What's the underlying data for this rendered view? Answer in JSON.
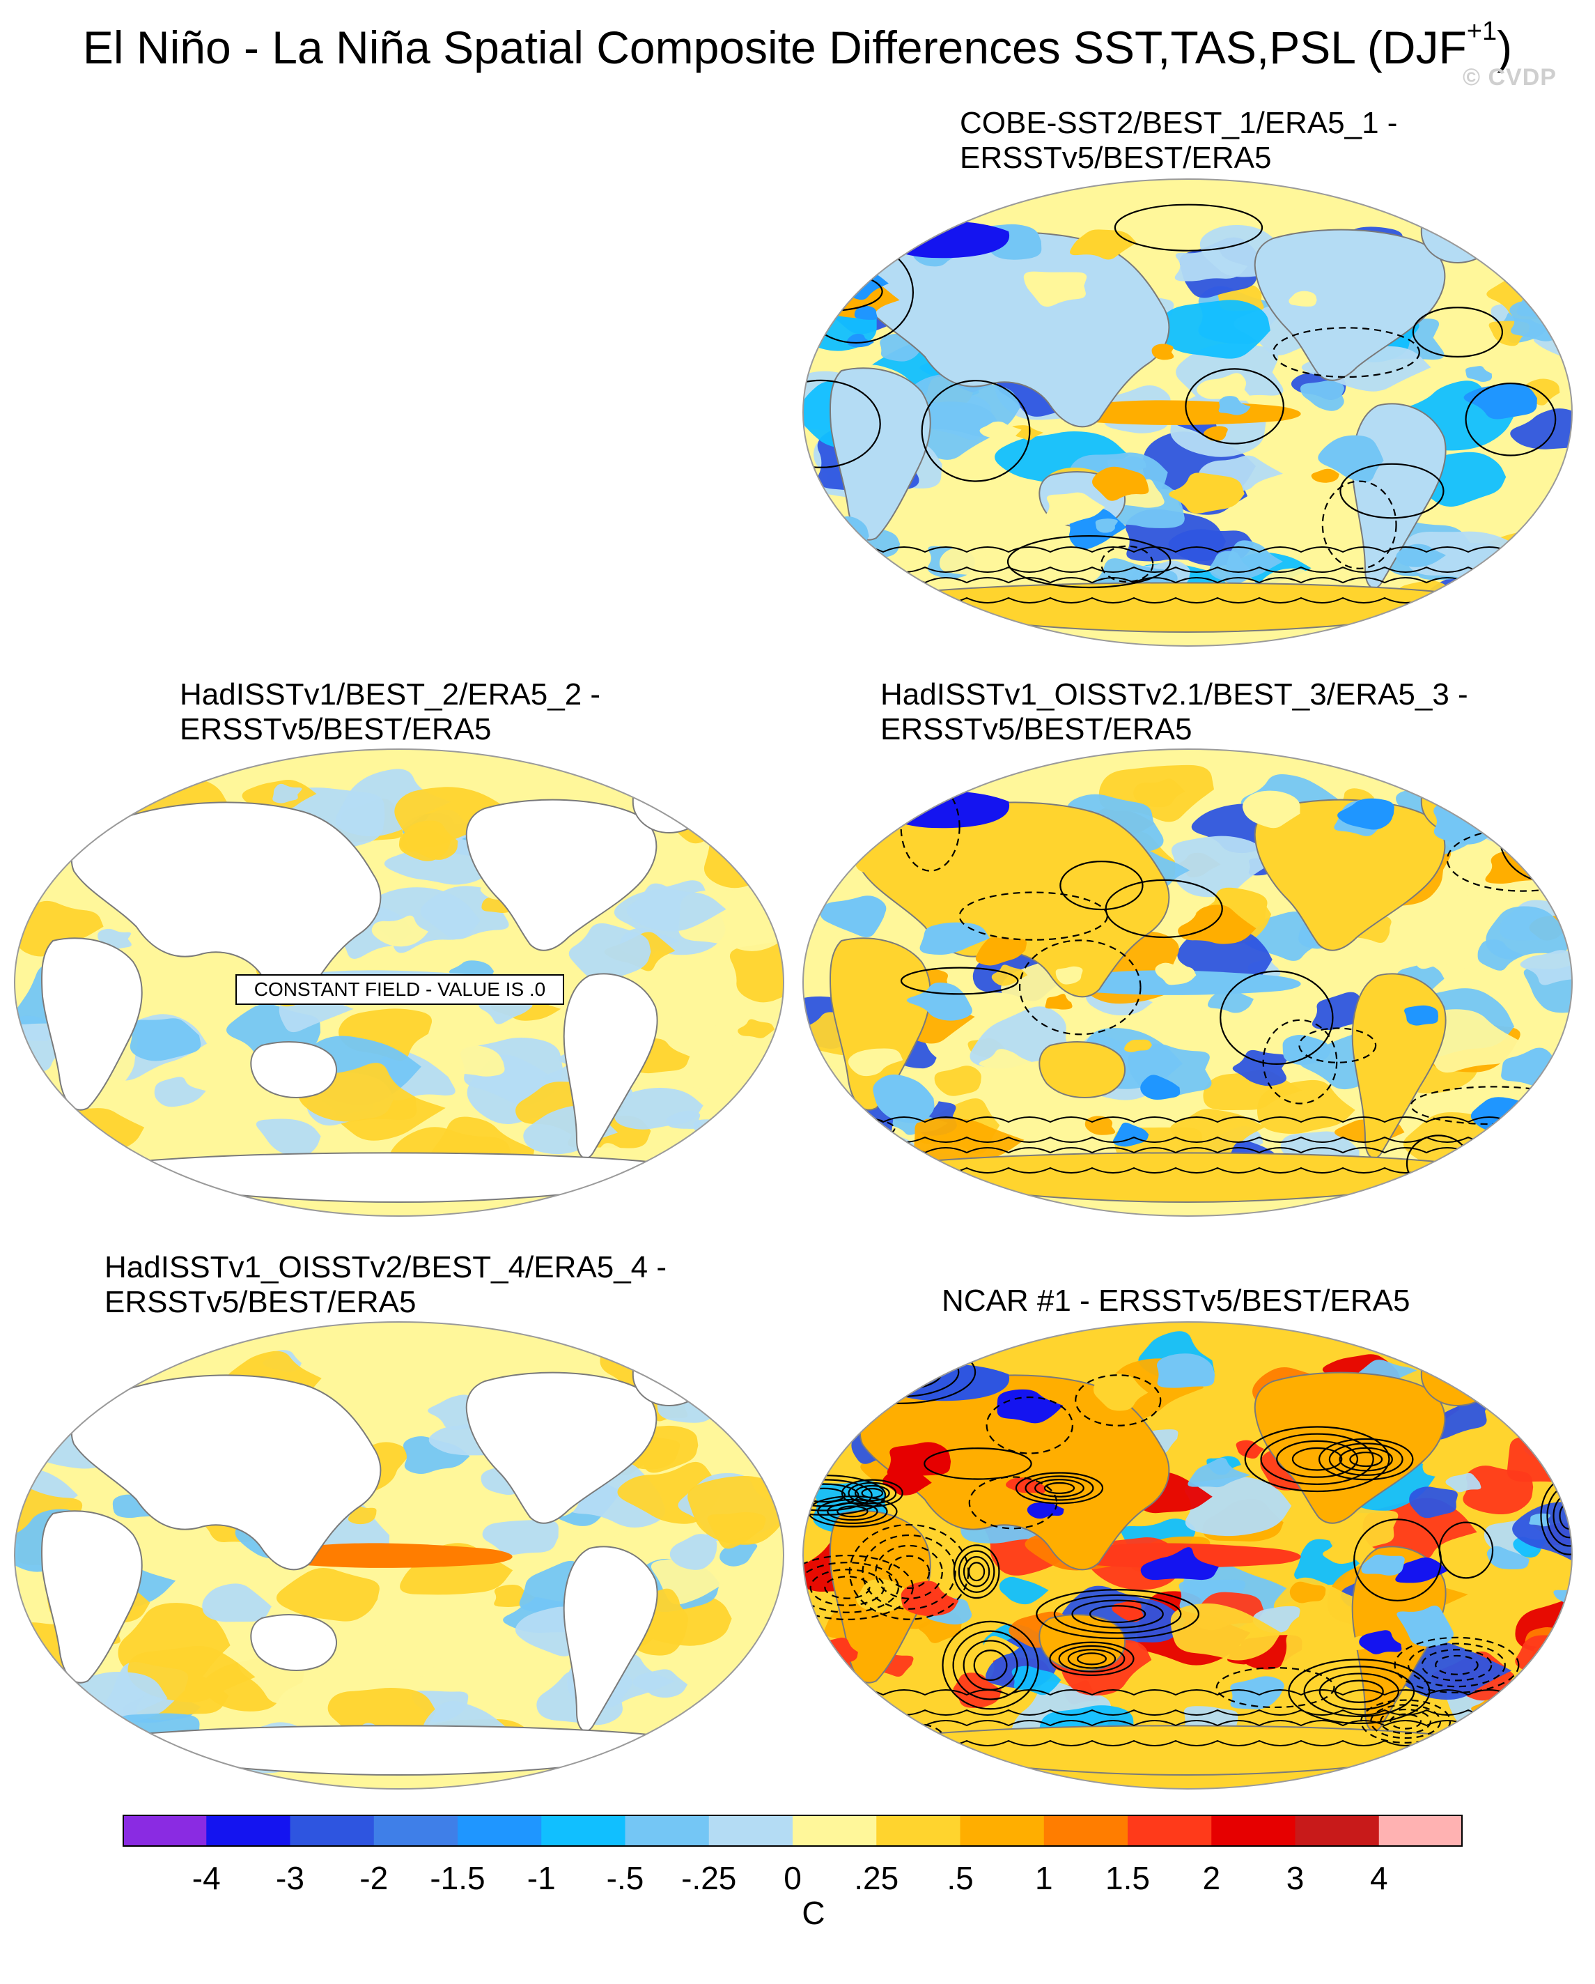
{
  "title": {
    "main": "El Niño - La Niña Spatial Composite Differences SST,TAS,PSL (DJF",
    "superscript": "+1",
    "close": ")"
  },
  "watermark": "© CVDP",
  "panels": [
    {
      "line1": "COBE-SST2/BEST_1/ERA5_1 -",
      "line2": "ERSSTv5/BEST/ERA5",
      "map": "cobe"
    },
    {
      "line1": "HadISSTv1/BEST_2/ERA5_2 -",
      "line2": "ERSSTv5/BEST/ERA5",
      "map": "hadisst",
      "note": "CONSTANT FIELD - VALUE IS .0"
    },
    {
      "line1": "HadISSTv1_OISSTv2.1/BEST_3/ERA5_3 -",
      "line2": "ERSSTv5/BEST/ERA5",
      "map": "oisst21"
    },
    {
      "line1": "HadISSTv1_OISSTv2/BEST_4/ERA5_4 -",
      "line2": "ERSSTv5/BEST/ERA5",
      "map": "oisst2"
    },
    {
      "line1": "NCAR #1 - ERSSTv5/BEST/ERA5",
      "line2": "",
      "map": "ncar"
    }
  ],
  "colorbar": {
    "colors": [
      "#8a2be2",
      "#1414f0",
      "#2e55e0",
      "#3f7fe8",
      "#1f96ff",
      "#11bfff",
      "#74c6f5",
      "#b4dcf4",
      "#fff79a",
      "#ffd42e",
      "#ffae00",
      "#ff7d00",
      "#ff3a1a",
      "#e60000",
      "#c81a1a",
      "#ffb2b2"
    ],
    "labels": [
      "-4",
      "-3",
      "-2",
      "-1.5",
      "-1",
      "-.5",
      "-.25",
      "0",
      ".25",
      ".5",
      "1",
      "1.5",
      "2",
      "3",
      "4"
    ],
    "units": "C"
  }
}
